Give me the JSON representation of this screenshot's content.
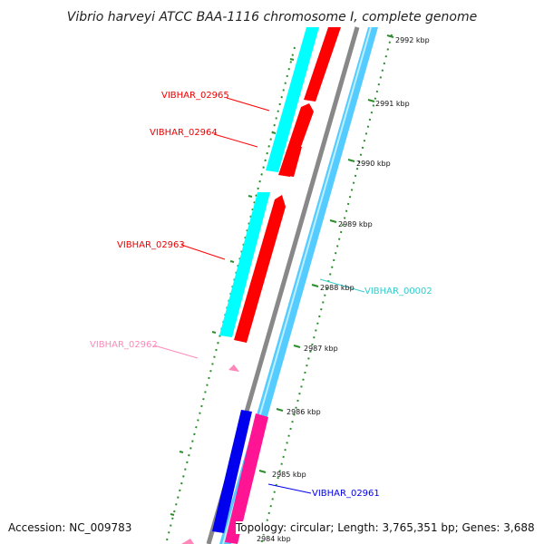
{
  "title": "Vibrio harveyi ATCC BAA-1116 chromosome I, complete genome",
  "accession": "Accession: NC_009783",
  "topology": "Topology: circular; Length: 3,765,351 bp; Genes: 3,688",
  "ticks": [
    "2992 kbp",
    "2991 kbp",
    "2990 kbp",
    "2989 kbp",
    "2988 kbp",
    "2987 kbp",
    "2986 kbp",
    "2985 kbp",
    "2984 kbp"
  ],
  "gene_labels": {
    "g02965": "VIBHAR_02965",
    "g02964": "VIBHAR_02964",
    "g02963": "VIBHAR_02963",
    "g02962": "VIBHAR_02962",
    "g00002": "VIBHAR_00002",
    "g02961": "VIBHAR_02961"
  },
  "colors": {
    "cds_forward": "#ff0000",
    "cds_reverse": "#00ffff",
    "backbone": "#888888",
    "gc_track": "#55ccff",
    "blue_feature": "#0000ee",
    "pink_feature": "#ff1493",
    "tick_mark": "#2e8b2e"
  }
}
